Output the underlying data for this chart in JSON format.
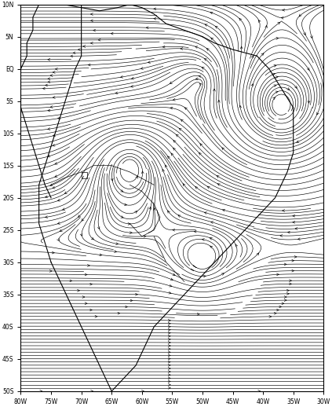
{
  "lon_min": -80,
  "lon_max": -30,
  "lat_min": -50,
  "lat_max": 10,
  "xtick_positions": [
    -80,
    -75,
    -70,
    -65,
    -60,
    -55,
    -50,
    -45,
    -40,
    -35,
    -30
  ],
  "xtick_labels": [
    "80W",
    "75W",
    "70W",
    "65W",
    "60W",
    "55W",
    "50W",
    "45W",
    "40W",
    "35W",
    "30W"
  ],
  "ytick_positions": [
    10,
    5,
    0,
    -5,
    -10,
    -15,
    -20,
    -25,
    -30,
    -35,
    -40,
    -45,
    -50
  ],
  "ytick_labels": [
    "10N",
    "5N",
    "EQ",
    "5S",
    "10S",
    "15S",
    "20S",
    "25S",
    "30S",
    "35S",
    "40S",
    "45S",
    "50S"
  ],
  "figsize": [
    4.23,
    5.18
  ],
  "dpi": 100,
  "bg_color": "#ffffff",
  "line_color": "#000000",
  "coast_lw": 0.8,
  "stream_lw": 0.45,
  "stream_density": 4.0,
  "stream_arrowsize": 0.5
}
